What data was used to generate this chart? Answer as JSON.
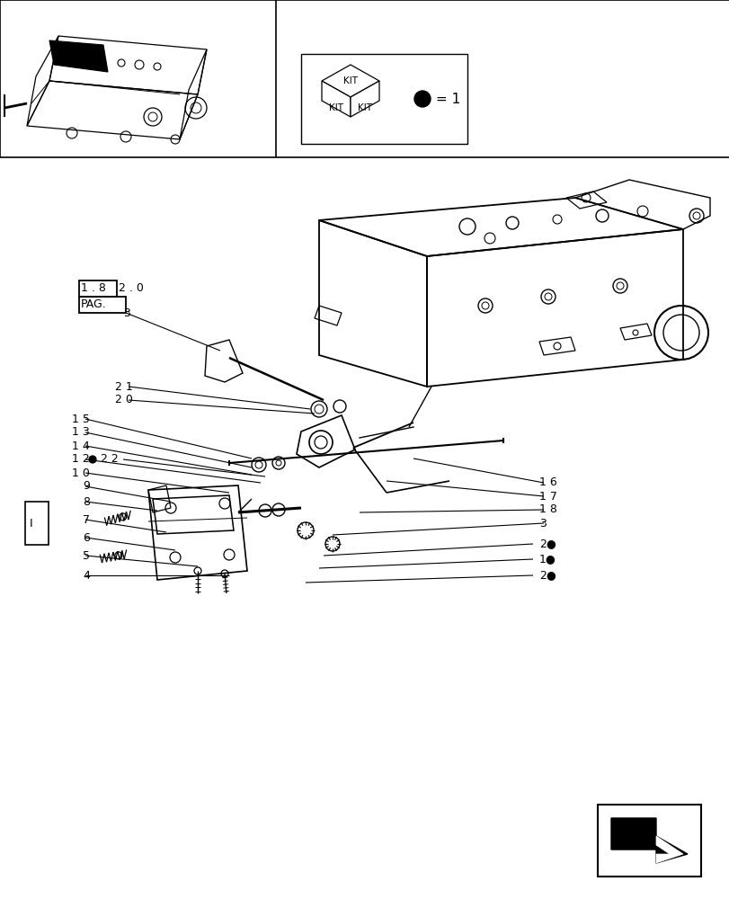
{
  "bg_color": "#ffffff",
  "line_color": "#000000",
  "page_ref_box1": "1 . 8",
  "page_ref_box2": "2 . 0",
  "page_ref_label": "PAG.",
  "kit_eq": "= 1",
  "bracket_label": "I"
}
